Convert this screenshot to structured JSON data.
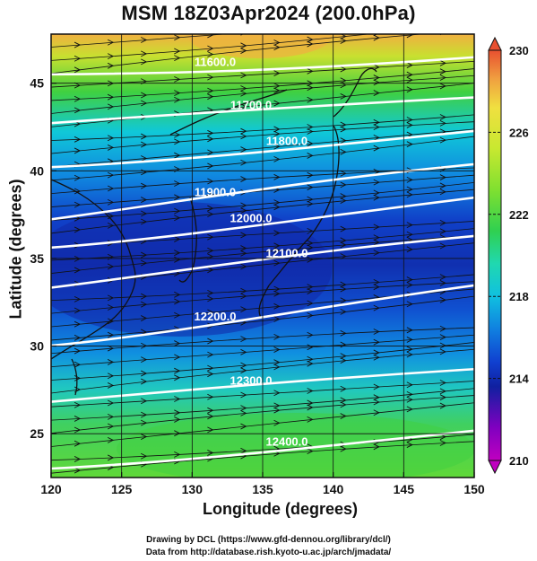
{
  "title": "MSM 18Z03Apr2024 (200.0hPa)",
  "xlabel": "Longitude (degrees)",
  "ylabel": "Latitude  (degrees)",
  "credits": {
    "line1": "Drawing by DCL (https://www.gfd-dennou.org/library/dcl/)",
    "line2": "Data from http://database.rish.kyoto-u.ac.jp/arch/jmadata/"
  },
  "chart_data": {
    "type": "map",
    "field": "200 hPa temperature (shaded), geopotential height (white contours), wind (streamlines)",
    "xlim": [
      120,
      150
    ],
    "ylim": [
      22.5,
      47.8
    ],
    "xticks": [
      120,
      125,
      130,
      135,
      140,
      145,
      150
    ],
    "yticks": [
      25,
      30,
      35,
      40,
      45
    ],
    "colorbar": {
      "min": 210,
      "max": 230,
      "ticks": [
        210,
        214,
        218,
        222,
        226,
        230
      ],
      "colors": [
        "#c000c0",
        "#8000c0",
        "#1020a0",
        "#1040d0",
        "#1080e0",
        "#10c0e0",
        "#20d8b0",
        "#30d050",
        "#80e030",
        "#c8e830",
        "#f0e040",
        "#f0a040",
        "#e85030"
      ]
    },
    "contours": [
      {
        "label": "11600.0",
        "lat_at_120": 45.5,
        "lat_at_150": 46.5
      },
      {
        "label": "11700.0",
        "lat_at_120": 42.7,
        "lat_at_150": 44.2
      },
      {
        "label": "11800.0",
        "lat_at_120": 40.2,
        "lat_at_150": 42.3
      },
      {
        "label": "11900.0",
        "lat_at_120": 37.2,
        "lat_at_150": 40.4
      },
      {
        "label": "12000.0",
        "lat_at_120": 35.6,
        "lat_at_150": 38.5
      },
      {
        "label": "12100.0",
        "lat_at_120": 33.3,
        "lat_at_150": 36.3
      },
      {
        "label": "12200.0",
        "lat_at_120": 30.0,
        "lat_at_150": 33.5
      },
      {
        "label": "12300.0",
        "lat_at_120": 26.8,
        "lat_at_150": 28.7
      },
      {
        "label": "12400.0",
        "lat_at_120": 23.0,
        "lat_at_150": 25.2
      }
    ]
  }
}
